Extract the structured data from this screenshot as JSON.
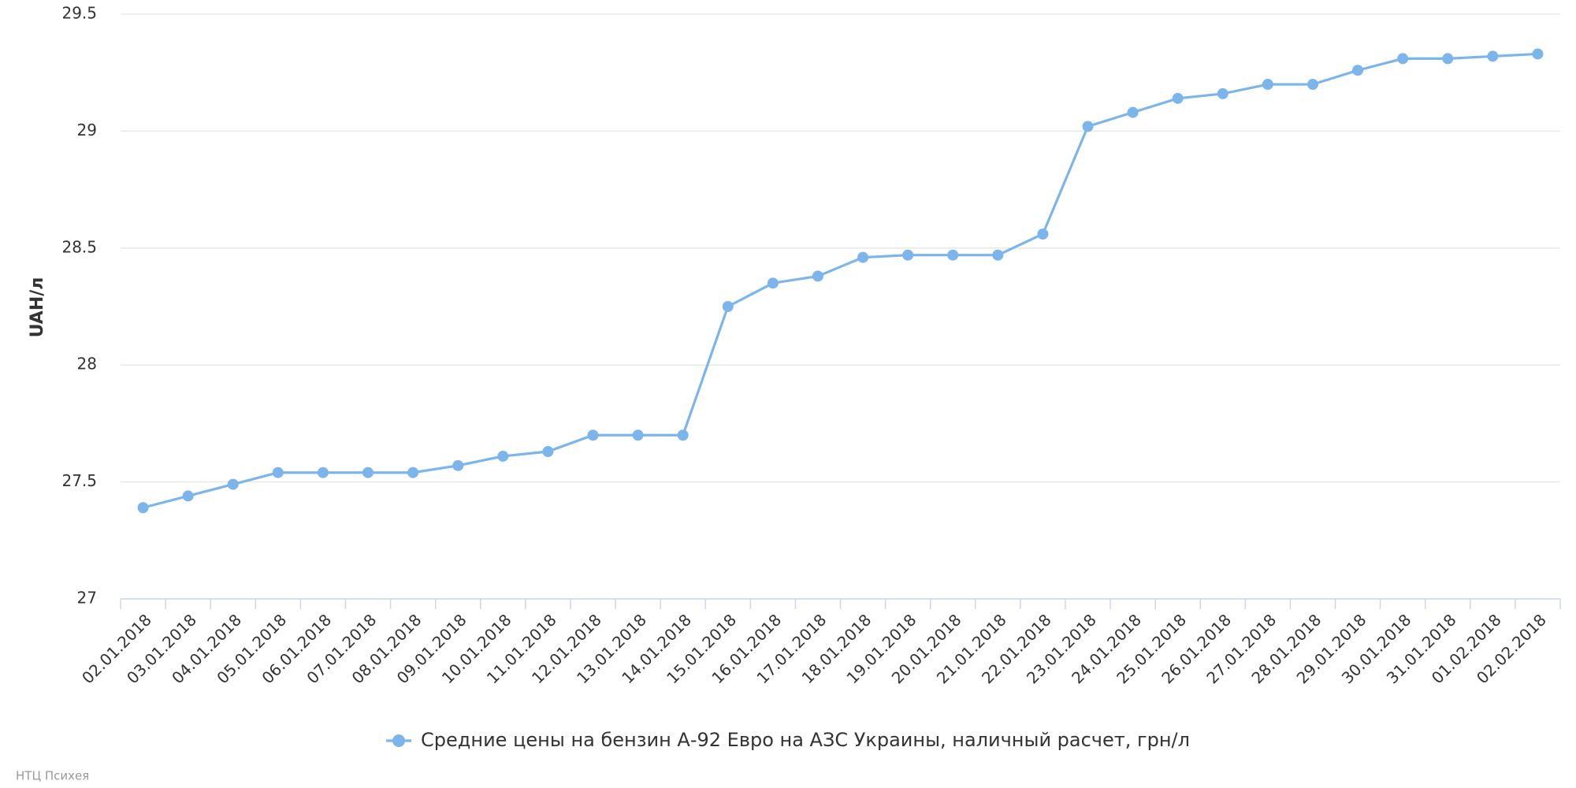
{
  "chart_data": {
    "type": "line",
    "y_label": "UAH/л",
    "credit": "НТЦ Психея",
    "categories": [
      "02.01.2018",
      "03.01.2018",
      "04.01.2018",
      "05.01.2018",
      "06.01.2018",
      "07.01.2018",
      "08.01.2018",
      "09.01.2018",
      "10.01.2018",
      "11.01.2018",
      "12.01.2018",
      "13.01.2018",
      "14.01.2018",
      "15.01.2018",
      "16.01.2018",
      "17.01.2018",
      "18.01.2018",
      "19.01.2018",
      "20.01.2018",
      "21.01.2018",
      "22.01.2018",
      "23.01.2018",
      "24.01.2018",
      "25.01.2018",
      "26.01.2018",
      "27.01.2018",
      "28.01.2018",
      "29.01.2018",
      "30.01.2018",
      "31.01.2018",
      "01.02.2018",
      "02.02.2018"
    ],
    "series": [
      {
        "name": "Средние цены на бензин А-92 Евро на АЗС Украины, наличный расчет, грн/л",
        "color": "#7cb5ec",
        "values": [
          27.39,
          27.44,
          27.49,
          27.54,
          27.54,
          27.54,
          27.54,
          27.57,
          27.61,
          27.63,
          27.7,
          27.7,
          27.7,
          28.25,
          28.35,
          28.38,
          28.46,
          28.47,
          28.47,
          28.47,
          28.56,
          29.02,
          29.08,
          29.14,
          29.16,
          29.2,
          29.2,
          29.26,
          29.31,
          29.31,
          29.32,
          29.33
        ]
      }
    ],
    "ylim": [
      27,
      29.5
    ],
    "yticks": [
      27,
      27.5,
      28,
      28.5,
      29,
      29.5
    ],
    "grid": true
  }
}
